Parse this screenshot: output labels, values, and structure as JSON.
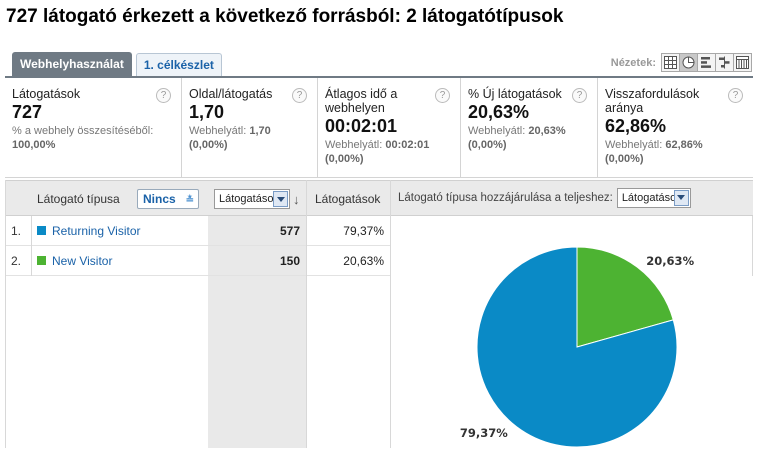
{
  "title": "727 látogató érkezett a következő forrásból: 2 látogatótípusok",
  "tabs": [
    {
      "label": "Webhelyhasználat",
      "active": true
    },
    {
      "label": "1. célkészlet",
      "active": false
    }
  ],
  "views": {
    "label": "Nézetek:",
    "icons": [
      "table-view-icon",
      "pie-view-icon",
      "bar-view-icon",
      "comparison-view-icon",
      "pivot-view-icon"
    ],
    "active_index": 1
  },
  "metrics": [
    {
      "label": "Látogatások",
      "value": "727",
      "sub_text": "% a webhely összesítéséből:",
      "sub_value": "100,00%"
    },
    {
      "label": "Oldal/látogatás",
      "value": "1,70",
      "sub_text": "Webhelyátl:",
      "sub_inline": "1,70",
      "sub_value": "(0,00%)"
    },
    {
      "label": "Átlagos idő a webhelyen",
      "value": "00:02:01",
      "sub_text": "Webhelyátl:",
      "sub_inline": "00:02:01",
      "sub_value": "(0,00%)"
    },
    {
      "label": "% Új látogatások",
      "value": "20,63%",
      "sub_text": "Webhelyátl:",
      "sub_inline": "20,63%",
      "sub_value": "(0,00%)"
    },
    {
      "label": "Visszafordulások aránya",
      "value": "62,86%",
      "sub_text": "Webhelyátl:",
      "sub_inline": "62,86%",
      "sub_value": "(0,00%)"
    }
  ],
  "help_glyph": "?",
  "table": {
    "dimension_header": "Látogató típusa",
    "secondary_dimension": "Nincs",
    "sort_select": "Látogatások",
    "metric_header": "Látogatások",
    "rows": [
      {
        "num": "1.",
        "name": "Returning Visitor",
        "value": "577",
        "pct": "79,37%",
        "color": "#0a8ac6"
      },
      {
        "num": "2.",
        "name": "New Visitor",
        "value": "150",
        "pct": "20,63%",
        "color": "#4db332"
      }
    ]
  },
  "pie_panel": {
    "label": "Látogató típusa hozzájárulása a teljeshez:",
    "select": "Látogatások"
  },
  "chart_data": {
    "type": "pie",
    "categories": [
      "Returning Visitor",
      "New Visitor"
    ],
    "values": [
      79.37,
      20.63
    ],
    "labels": [
      "79,37%",
      "20,63%"
    ],
    "colors": [
      "#0a8ac6",
      "#4db332"
    ]
  }
}
